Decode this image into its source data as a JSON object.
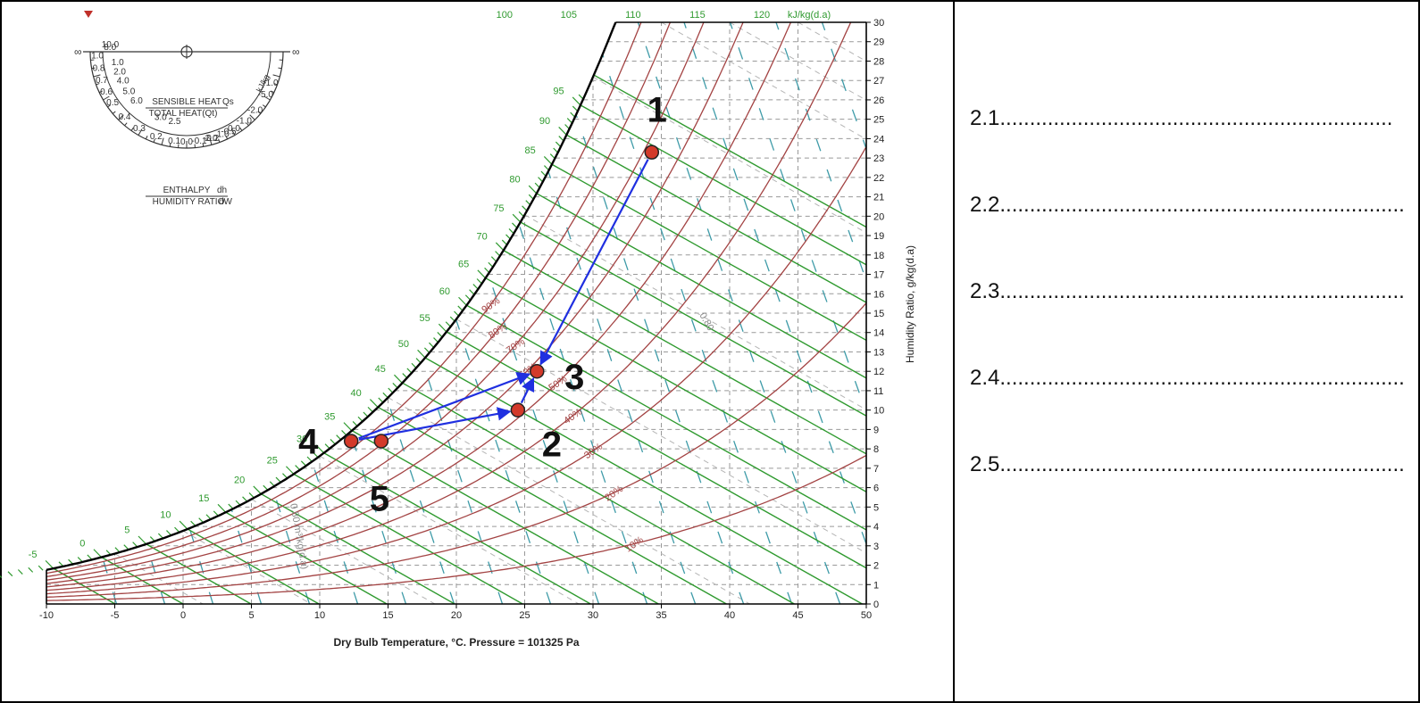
{
  "chart_data": {
    "type": "psychrometric",
    "xlabel": "Dry Bulb Temperature, °C. Pressure = 101325 Pa",
    "ylabel": "Humidity Ratio, g/kg(d.a)",
    "enthalpy_unit_label": "kJ/kg(d.a)",
    "xlim": [
      -10,
      50
    ],
    "ylim": [
      0,
      30
    ],
    "x_ticks": [
      "-10",
      "-5",
      "0",
      "5",
      "10",
      "15",
      "20",
      "25",
      "30",
      "35",
      "40",
      "45",
      "50"
    ],
    "y_ticks": [
      "0",
      "1",
      "2",
      "3",
      "4",
      "5",
      "6",
      "7",
      "8",
      "9",
      "10",
      "11",
      "12",
      "13",
      "14",
      "15",
      "16",
      "17",
      "18",
      "19",
      "20",
      "21",
      "22",
      "23",
      "24",
      "25",
      "26",
      "27",
      "28",
      "29",
      "30"
    ],
    "enthalpy_lines": [
      -10,
      -5,
      0,
      5,
      10,
      15,
      20,
      25,
      30,
      35,
      40,
      45,
      50,
      55,
      60,
      65,
      70,
      75,
      80,
      85,
      90,
      95,
      100,
      105,
      110,
      115,
      120
    ],
    "enthalpy_top_labels": [
      "100",
      "105",
      "110",
      "115",
      "120"
    ],
    "rh_curves": [
      10,
      20,
      30,
      40,
      50,
      60,
      70,
      80,
      90,
      100
    ],
    "rh_labels": [
      "10%",
      "20%",
      "30%",
      "40%",
      "50%",
      "60%",
      "70%",
      "80%",
      "90%"
    ],
    "volume_label": "0.80",
    "volume_label_left": "0.80 m³/kg(d.a)",
    "points": [
      {
        "label": "1",
        "t": 34.3,
        "w": 23.3
      },
      {
        "label": "2",
        "t": 24.5,
        "w": 10.0
      },
      {
        "label": "3",
        "t": 25.9,
        "w": 12.0
      },
      {
        "label": "4",
        "t": 12.3,
        "w": 8.4
      },
      {
        "label": "5",
        "t": 14.5,
        "w": 8.4
      }
    ],
    "arrows": [
      [
        "1",
        "3"
      ],
      [
        "4",
        "2"
      ],
      [
        "2",
        "3"
      ],
      [
        "4",
        "3"
      ]
    ],
    "protractor": {
      "shr_title": "SENSIBLE HEAT",
      "shr_sub": "TOTAL HEAT(Qt)",
      "shr_sub_right": "Qs",
      "enthalpy_title": "ENTHALPY",
      "enthalpy_sub": "HUMIDITY RATIO",
      "enthalpy_sub_right": "dh",
      "enthalpy_sub_right2": "dW",
      "scale_labels": [
        "1.0",
        "0.8",
        "0.7",
        "0.6",
        "0.5",
        "0.4",
        "0.3",
        "0.2",
        "0.1",
        "0.0",
        "-0.1",
        "-0.2",
        "-0.5",
        "1.0",
        "2.0",
        "4.0",
        "5.0",
        "6.0",
        "8.0",
        "10.0",
        "-2.0",
        "-1.0",
        "0.0",
        "1.0",
        "2.0",
        "-5.0",
        "-1.0",
        "2.5",
        "3.0"
      ],
      "infinity": "∞",
      "right_scale_unit": "kJ/kg"
    },
    "colors": {
      "enthalpy": "#2f9a2f",
      "rh": "#a34343",
      "volume": "#3e9ba8",
      "grid": "#999999",
      "arrow": "#1f2fe0",
      "point": "#d33a2a"
    }
  },
  "answers": [
    {
      "num": "2.1",
      "dots": ".................................................................."
    },
    {
      "num": "2.2",
      "dots": "...................................................................."
    },
    {
      "num": "2.3",
      "dots": "...................................................................."
    },
    {
      "num": "2.4",
      "dots": "...................................................................."
    },
    {
      "num": "2.5",
      "dots": "...................................................................."
    }
  ]
}
